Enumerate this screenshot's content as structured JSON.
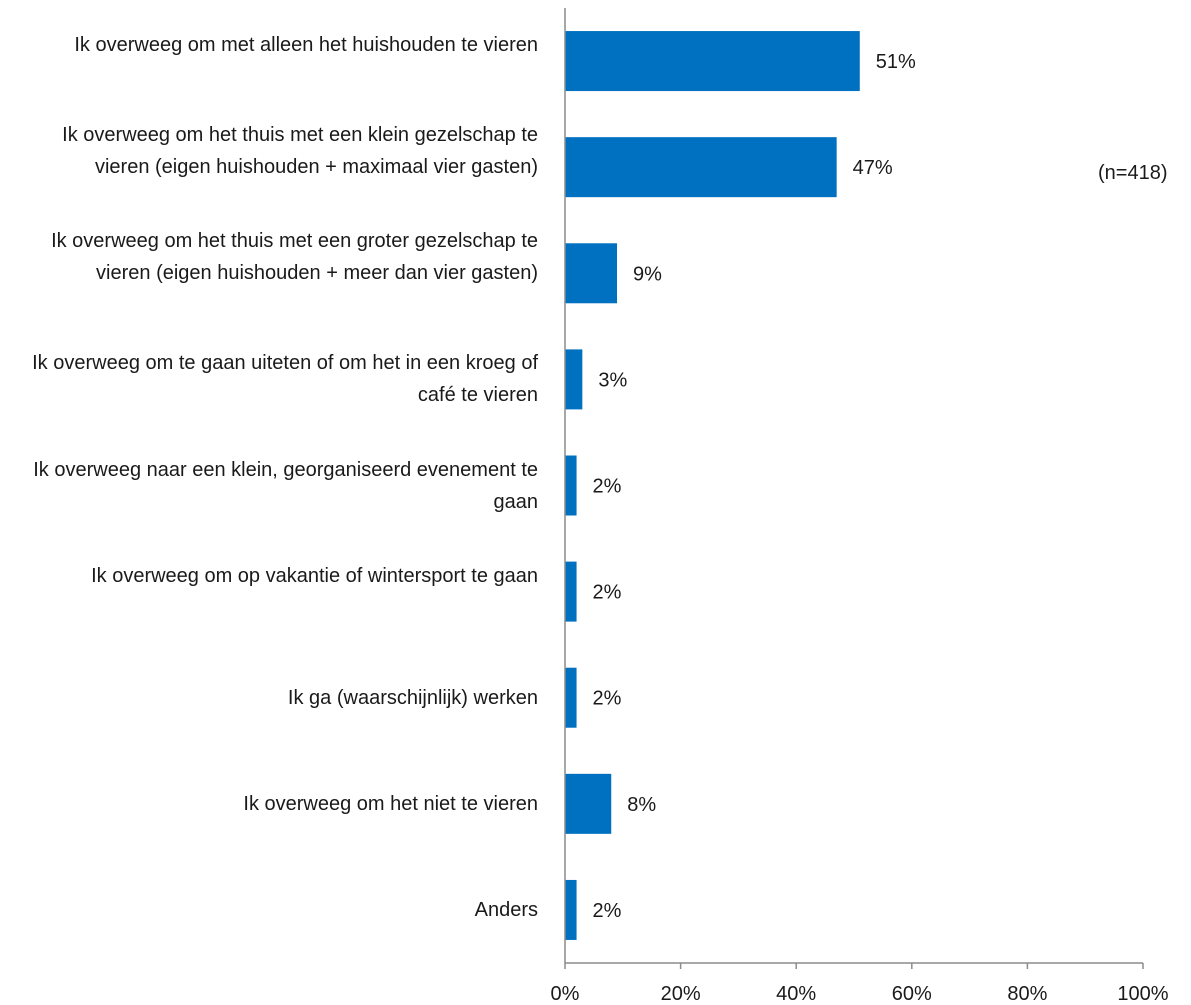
{
  "chart_data": {
    "type": "bar",
    "orientation": "horizontal",
    "categories": [
      "Ik overweeg om met alleen het huishouden te vieren",
      "Ik overweeg om het thuis met een klein gezelschap te vieren (eigen huishouden + maximaal vier gasten)",
      "Ik overweeg om het thuis met een groter gezelschap te vieren (eigen huishouden + meer dan vier gasten)",
      "Ik overweeg om te gaan uiteten of om het in een kroeg of café te vieren",
      "Ik overweeg naar een klein, georganiseerd evenement te gaan",
      "Ik overweeg om op vakantie of wintersport te gaan",
      "Ik ga (waarschijnlijk) werken",
      "Ik overweeg om het niet te vieren",
      "Anders"
    ],
    "values": [
      51,
      47,
      9,
      3,
      2,
      2,
      2,
      8,
      2
    ],
    "data_labels": [
      "51%",
      "47%",
      "9%",
      "3%",
      "2%",
      "2%",
      "2%",
      "8%",
      "2%"
    ],
    "xlim": [
      0,
      100
    ],
    "x_ticks": [
      "0%",
      "20%",
      "40%",
      "60%",
      "80%",
      "100%"
    ],
    "bar_color": "#0070C0",
    "note": "(n=418)",
    "grid": false,
    "legend": "none"
  }
}
